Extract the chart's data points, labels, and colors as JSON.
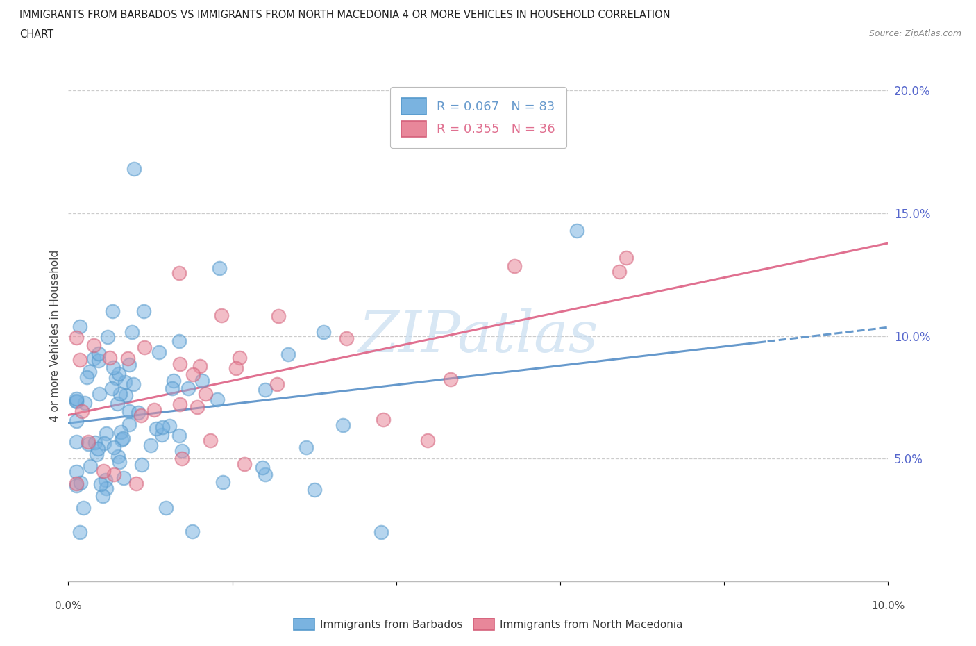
{
  "title_line1": "IMMIGRANTS FROM BARBADOS VS IMMIGRANTS FROM NORTH MACEDONIA 4 OR MORE VEHICLES IN HOUSEHOLD CORRELATION",
  "title_line2": "CHART",
  "source": "Source: ZipAtlas.com",
  "ylabel": "4 or more Vehicles in Household",
  "xlim": [
    0.0,
    0.1
  ],
  "ylim": [
    0.0,
    0.2
  ],
  "ytick_vals": [
    0.05,
    0.1,
    0.15,
    0.2
  ],
  "ytick_labels": [
    "5.0%",
    "10.0%",
    "15.0%",
    "20.0%"
  ],
  "watermark": "ZIPatlas",
  "color_barbados": "#7ab3e0",
  "color_barbados_edge": "#5599cc",
  "color_macedonia": "#e8879a",
  "color_macedonia_edge": "#d4607a",
  "color_b_line": "#6699cc",
  "color_m_line": "#e07090",
  "legend_label1": "Immigrants from Barbados",
  "legend_label2": "Immigrants from North Macedonia",
  "legend_text1": "R = 0.067   N = 83",
  "legend_text2": "R = 0.355   N = 36"
}
